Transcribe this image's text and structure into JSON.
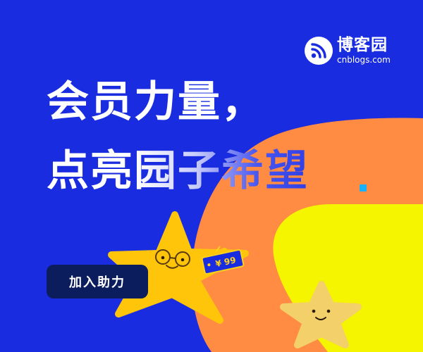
{
  "brand": {
    "name": "博客园",
    "domain": "cnblogs.com",
    "logo": "rss-feed-icon"
  },
  "headline": {
    "line1": "会员力量，",
    "line2_plain": "点亮",
    "line2_faded": "园子希望"
  },
  "cta": {
    "label": "加入助力"
  },
  "price_tag": {
    "text": "¥ 99"
  },
  "colors": {
    "background": "#1a2ce0",
    "orange_arc": "#ff8c42",
    "yellow_panel": "#f5f500",
    "star": "#ffc50a",
    "small_star": "#f4d06a",
    "button": "#0b1d5c",
    "accent_dot": "#1bb0f7"
  }
}
